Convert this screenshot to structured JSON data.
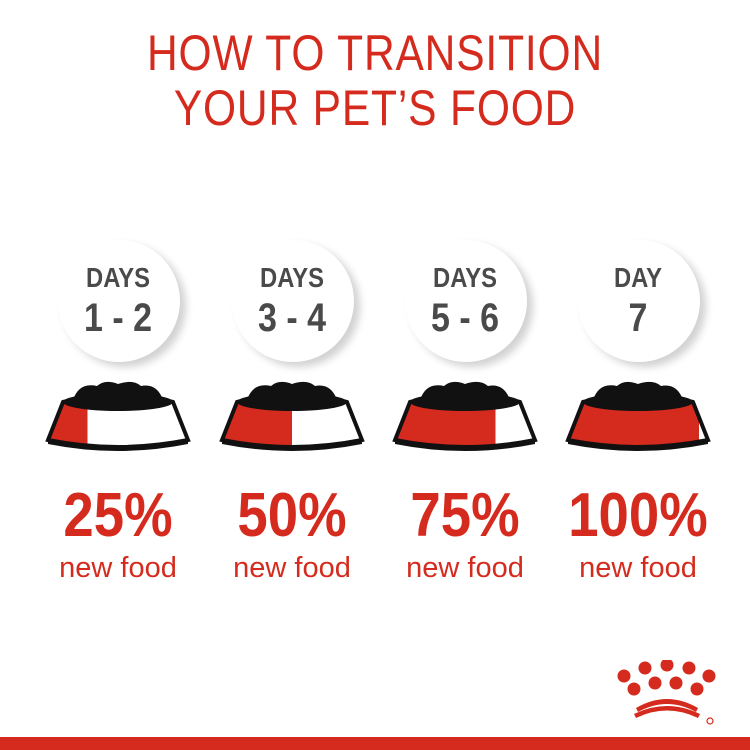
{
  "title": [
    "HOW TO TRANSITION",
    "YOUR PET’S FOOD"
  ],
  "colors": {
    "accent": "#d52b1e",
    "text": "#4a4a4a"
  },
  "steps": [
    {
      "label": "DAYS",
      "range": "1 - 2",
      "percent": "25%",
      "caption": "new food",
      "fraction": 0.25
    },
    {
      "label": "DAYS",
      "range": "3 - 4",
      "percent": "50%",
      "caption": "new food",
      "fraction": 0.5
    },
    {
      "label": "DAYS",
      "range": "5 - 6",
      "percent": "75%",
      "caption": "new food",
      "fraction": 0.75
    },
    {
      "label": "DAY",
      "range": "7",
      "percent": "100%",
      "caption": "new food",
      "fraction": 1.0
    }
  ],
  "logo": {
    "name": "crown-logo",
    "mark": "®"
  }
}
